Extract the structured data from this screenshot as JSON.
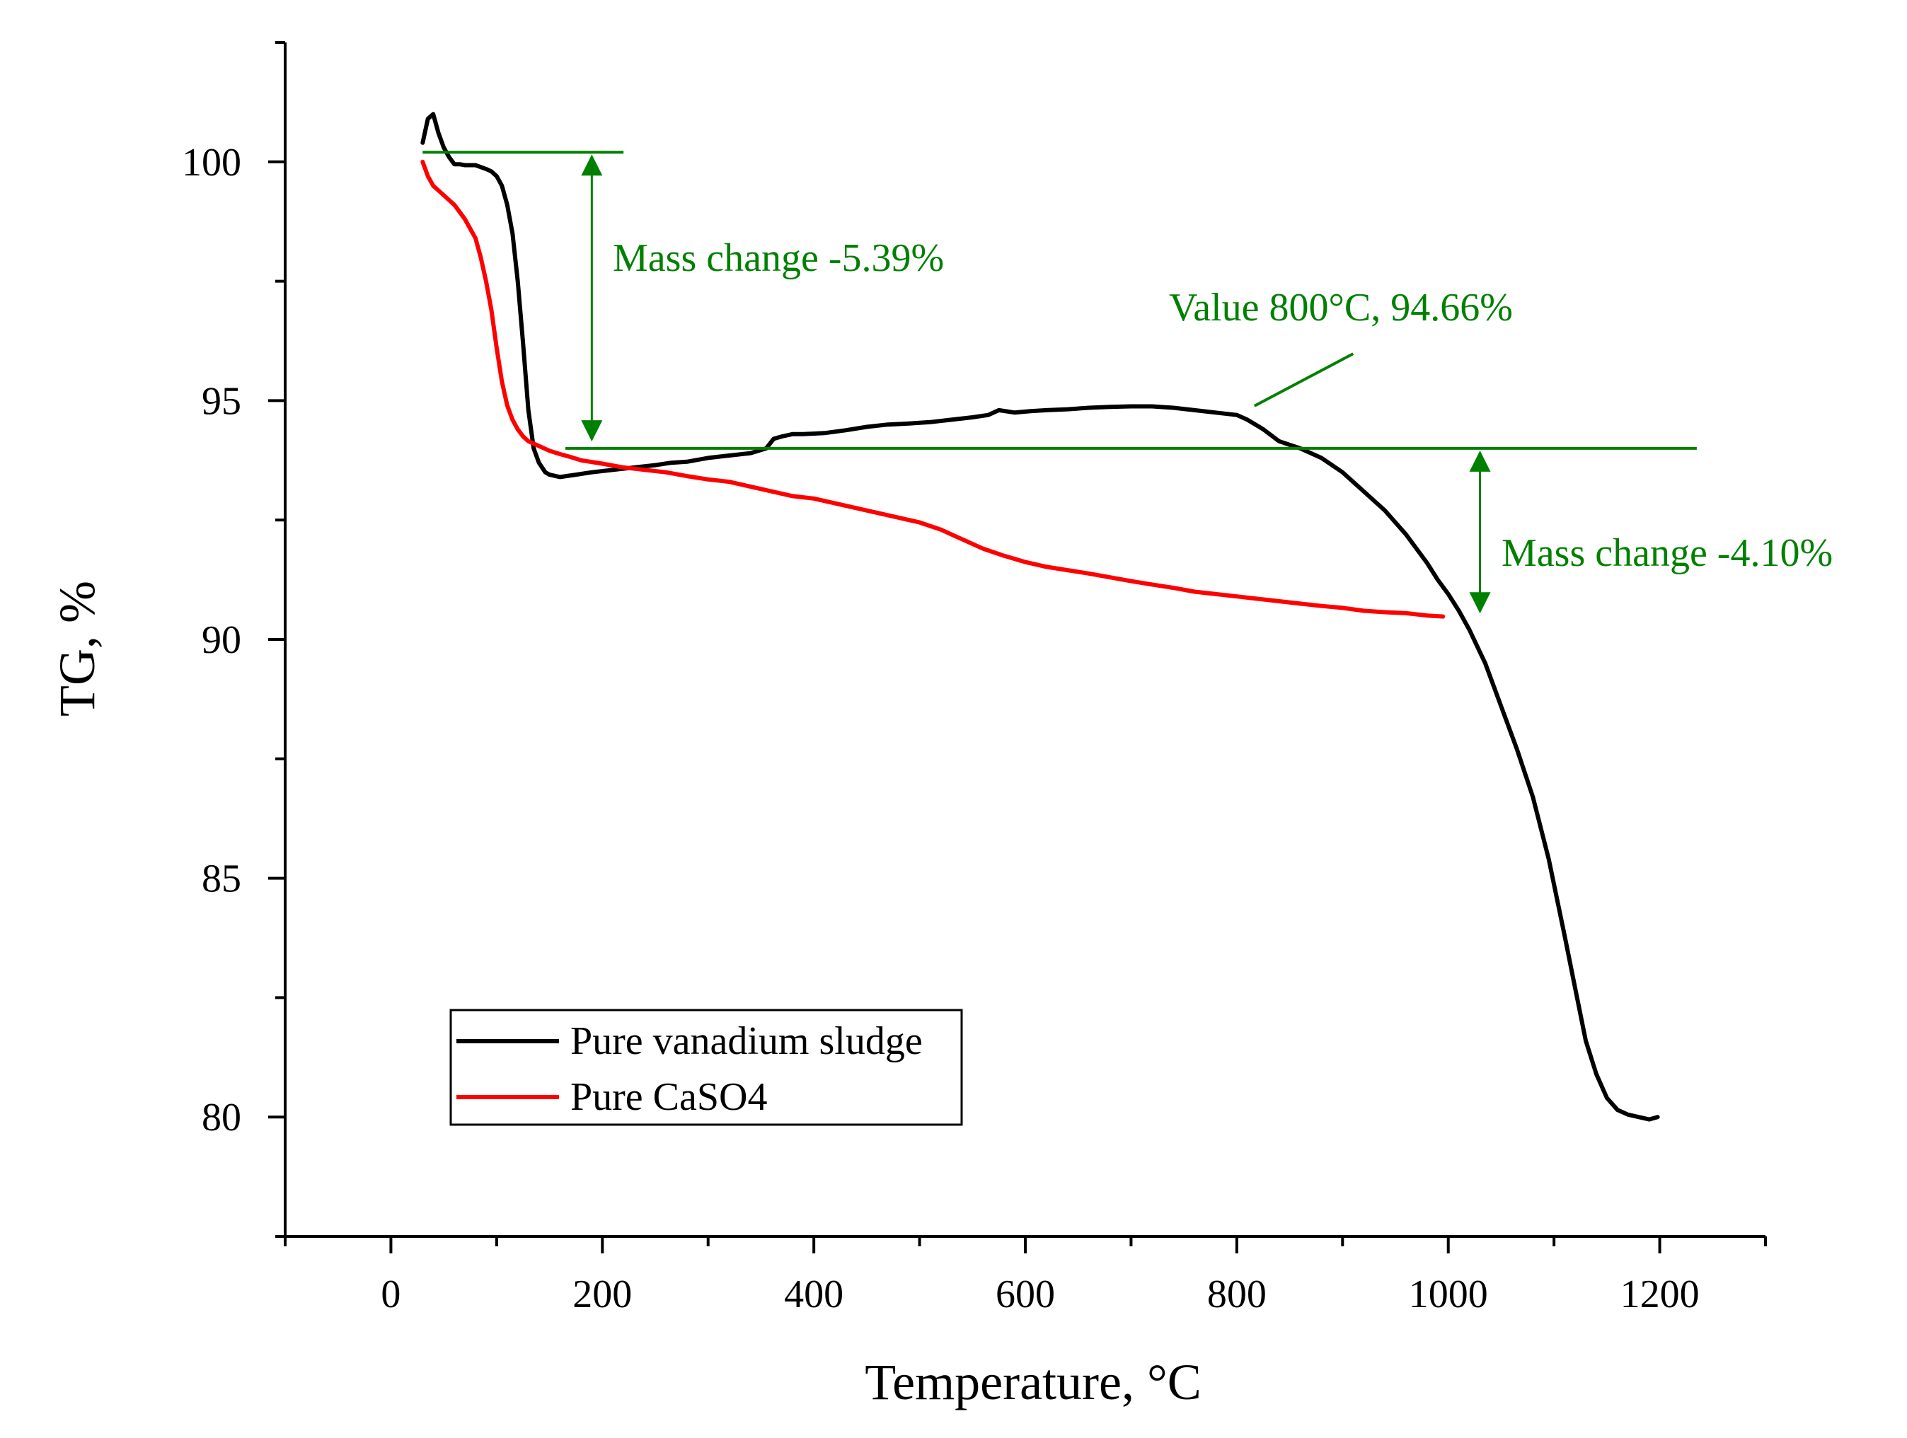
{
  "chart_data": {
    "type": "line",
    "title": "",
    "xlabel": "Temperature, °C",
    "ylabel": "TG, %",
    "xlim": [
      -100,
      1300
    ],
    "ylim": [
      77.5,
      102.5
    ],
    "xticks": [
      0,
      200,
      400,
      600,
      800,
      1000,
      1200
    ],
    "xtick_labels": [
      "0",
      "200",
      "400",
      "600",
      "800",
      "1000",
      "1200"
    ],
    "xminor": [
      -100,
      100,
      300,
      500,
      700,
      900,
      1100,
      1300
    ],
    "yticks": [
      80,
      85,
      90,
      95,
      100
    ],
    "ytick_labels": [
      "80",
      "85",
      "90",
      "95",
      "100"
    ],
    "yminor": [
      77.5,
      82.5,
      87.5,
      92.5,
      97.5,
      102.5
    ],
    "grid": false,
    "legend_position": "bottom-left",
    "series": [
      {
        "name": "Pure vanadium sludge",
        "color": "#000000",
        "x": [
          30,
          35,
          40,
          45,
          50,
          55,
          60,
          65,
          70,
          80,
          90,
          95,
          100,
          105,
          110,
          115,
          120,
          125,
          130,
          135,
          140,
          143,
          146,
          150,
          160,
          175,
          190,
          210,
          230,
          250,
          265,
          280,
          300,
          320,
          340,
          355,
          362,
          370,
          380,
          390,
          410,
          430,
          450,
          470,
          490,
          510,
          530,
          550,
          565,
          575,
          590,
          605,
          620,
          640,
          660,
          680,
          700,
          720,
          740,
          760,
          780,
          800,
          810,
          825,
          840,
          860,
          880,
          900,
          920,
          940,
          960,
          980,
          990,
          1000,
          1010,
          1020,
          1035,
          1050,
          1065,
          1080,
          1095,
          1110,
          1120,
          1130,
          1140,
          1150,
          1160,
          1170,
          1180,
          1190,
          1198
        ],
        "values": [
          100.4,
          100.9,
          101.0,
          100.6,
          100.3,
          100.1,
          99.95,
          99.95,
          99.93,
          99.93,
          99.85,
          99.8,
          99.7,
          99.5,
          99.1,
          98.5,
          97.5,
          96.2,
          94.8,
          94.0,
          93.7,
          93.6,
          93.5,
          93.45,
          93.4,
          93.45,
          93.5,
          93.55,
          93.6,
          93.65,
          93.7,
          93.72,
          93.8,
          93.85,
          93.9,
          94.0,
          94.2,
          94.25,
          94.3,
          94.3,
          94.32,
          94.38,
          94.45,
          94.5,
          94.52,
          94.55,
          94.6,
          94.65,
          94.7,
          94.8,
          94.75,
          94.78,
          94.8,
          94.82,
          94.85,
          94.87,
          94.88,
          94.88,
          94.85,
          94.8,
          94.75,
          94.7,
          94.6,
          94.4,
          94.15,
          94.0,
          93.8,
          93.5,
          93.1,
          92.7,
          92.2,
          91.6,
          91.25,
          90.95,
          90.6,
          90.2,
          89.5,
          88.6,
          87.7,
          86.7,
          85.4,
          83.8,
          82.7,
          81.6,
          80.9,
          80.4,
          80.15,
          80.05,
          80.0,
          79.95,
          80.0
        ]
      },
      {
        "name": "Pure CaSO4",
        "color": "#ff0000",
        "x": [
          30,
          35,
          40,
          45,
          50,
          55,
          60,
          65,
          70,
          75,
          80,
          85,
          90,
          95,
          100,
          105,
          110,
          115,
          120,
          125,
          130,
          140,
          150,
          160,
          170,
          180,
          200,
          220,
          240,
          260,
          280,
          300,
          320,
          340,
          360,
          380,
          400,
          420,
          440,
          460,
          480,
          500,
          520,
          540,
          560,
          580,
          600,
          620,
          640,
          660,
          680,
          700,
          720,
          740,
          760,
          780,
          800,
          820,
          840,
          860,
          880,
          900,
          920,
          940,
          960,
          980,
          995
        ],
        "values": [
          100.0,
          99.7,
          99.5,
          99.4,
          99.3,
          99.2,
          99.1,
          98.95,
          98.8,
          98.6,
          98.4,
          98.0,
          97.5,
          96.9,
          96.1,
          95.4,
          94.9,
          94.6,
          94.4,
          94.25,
          94.15,
          94.05,
          93.95,
          93.88,
          93.82,
          93.75,
          93.68,
          93.6,
          93.55,
          93.5,
          93.42,
          93.35,
          93.3,
          93.2,
          93.1,
          93.0,
          92.95,
          92.85,
          92.75,
          92.65,
          92.55,
          92.45,
          92.3,
          92.1,
          91.9,
          91.75,
          91.62,
          91.52,
          91.45,
          91.38,
          91.3,
          91.22,
          91.15,
          91.08,
          91.0,
          90.95,
          90.9,
          90.85,
          90.8,
          90.75,
          90.7,
          90.66,
          90.6,
          90.57,
          90.55,
          90.5,
          90.48
        ]
      }
    ],
    "annotations": {
      "color": "#008000",
      "mass_change_1": {
        "text": "Mass change -5.39%",
        "x": 190,
        "y_from": 100.2,
        "y_to": 94.1,
        "hline_y": 100.2,
        "hline_x": [
          30,
          220
        ]
      },
      "mass_change_2": {
        "text": "Mass change -4.10%",
        "x": 1030,
        "y_from": 94.0,
        "y_to": 90.5,
        "hline_y": 94.0,
        "hline_x": [
          165,
          1235
        ]
      },
      "value_800": {
        "text": "Value 800°C, 94.66%",
        "point_x": 810,
        "point_y": 94.8,
        "label_x": 910,
        "label_y": 96.1
      }
    }
  }
}
